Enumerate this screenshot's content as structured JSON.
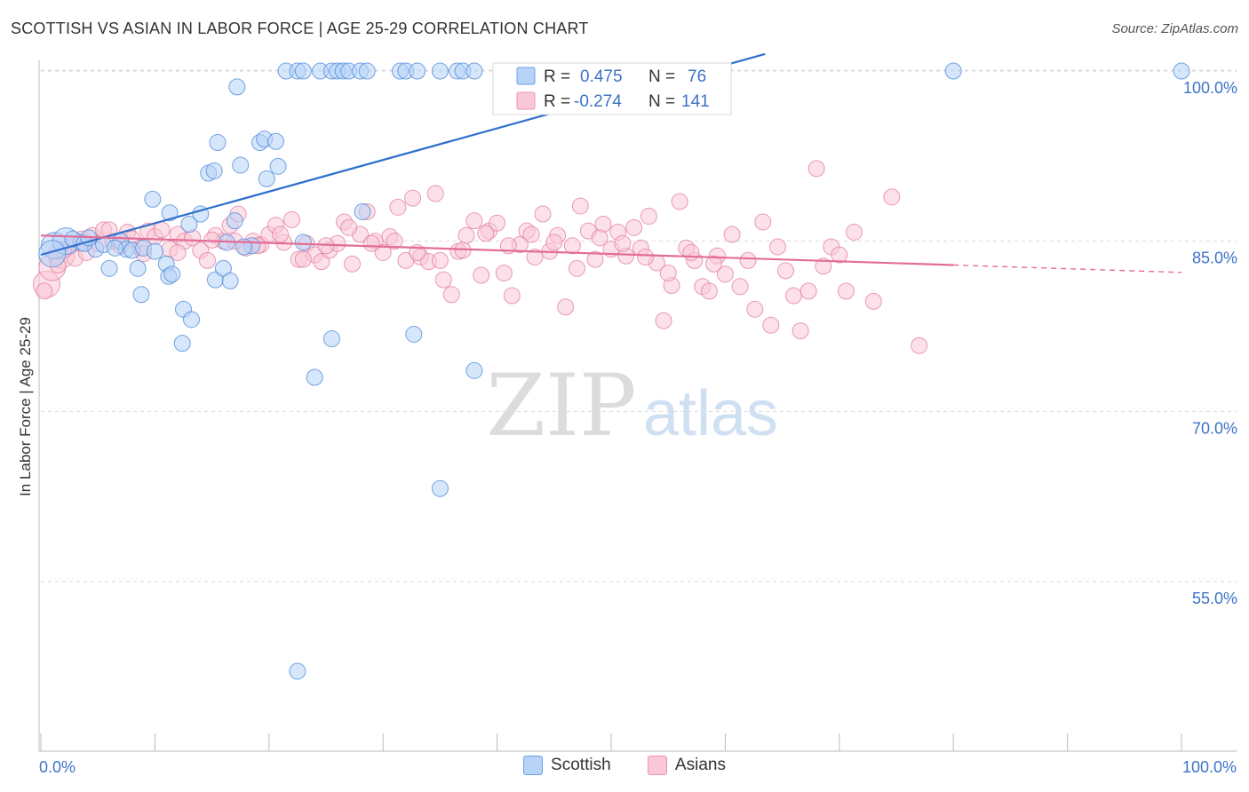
{
  "header": {
    "title": "SCOTTISH VS ASIAN IN LABOR FORCE | AGE 25-29 CORRELATION CHART",
    "source": "Source: ZipAtlas.com"
  },
  "watermark": {
    "zip": "ZIP",
    "atlas": "atlas"
  },
  "legend_box": {
    "rows": [
      {
        "r_label": "R =",
        "r_value": "0.475",
        "n_label": "N =",
        "n_value": "76",
        "color": "#4a86d8"
      },
      {
        "r_label": "R =",
        "r_value": "-0.274",
        "n_label": "N =",
        "n_value": "141",
        "color": "#e27ba0"
      }
    ]
  },
  "bottom_legend": [
    {
      "label": "Scottish",
      "color": "#b7d3f7"
    },
    {
      "label": "Asians",
      "color": "#f9c8d6"
    }
  ],
  "chart_data": {
    "type": "scatter",
    "title": "SCOTTISH VS ASIAN IN LABOR FORCE | AGE 25-29 CORRELATION CHART",
    "xlabel": "",
    "ylabel": "In Labor Force | Age 25-29",
    "xlim": [
      0,
      100
    ],
    "ylim": [
      42,
      102
    ],
    "x_tick_labels": [
      {
        "value": 0,
        "label": "0.0%"
      },
      {
        "value": 100,
        "label": "100.0%"
      }
    ],
    "y_tick_labels": [
      {
        "value": 55,
        "label": "55.0%"
      },
      {
        "value": 70,
        "label": "70.0%"
      },
      {
        "value": 85,
        "label": "85.0%"
      },
      {
        "value": 100,
        "label": "100.0%"
      }
    ],
    "grid": true,
    "legend_position": "bottom-center",
    "series": [
      {
        "name": "Scottish",
        "color": "#4a86d8",
        "fill": "#b7d3f7",
        "trend": {
          "x": [
            0,
            63.5
          ],
          "y": [
            83.8,
            101.5
          ]
        },
        "points": [
          [
            1.2,
            84.6
          ],
          [
            2.2,
            85.0
          ],
          [
            1.0,
            83.9
          ],
          [
            3.5,
            84.9
          ],
          [
            4.8,
            84.3
          ],
          [
            5.5,
            84.7
          ],
          [
            6.0,
            82.6
          ],
          [
            7.0,
            85.0
          ],
          [
            7.5,
            84.3
          ],
          [
            8.5,
            82.6
          ],
          [
            8.0,
            84.2
          ],
          [
            9.0,
            84.4
          ],
          [
            10.0,
            84.1
          ],
          [
            11.0,
            83.0
          ],
          [
            11.2,
            81.9
          ],
          [
            11.5,
            82.1
          ],
          [
            8.8,
            80.3
          ],
          [
            9.8,
            88.7
          ],
          [
            11.3,
            87.5
          ],
          [
            14.0,
            87.4
          ],
          [
            12.5,
            79.0
          ],
          [
            13.2,
            78.1
          ],
          [
            12.4,
            76.0
          ],
          [
            15.3,
            81.6
          ],
          [
            16.0,
            82.6
          ],
          [
            16.6,
            81.5
          ],
          [
            17.0,
            86.8
          ],
          [
            16.3,
            84.9
          ],
          [
            14.7,
            91.0
          ],
          [
            15.2,
            91.2
          ],
          [
            15.5,
            93.7
          ],
          [
            17.5,
            91.7
          ],
          [
            19.2,
            93.7
          ],
          [
            19.6,
            94.0
          ],
          [
            20.6,
            93.8
          ],
          [
            20.8,
            91.6
          ],
          [
            19.8,
            90.5
          ],
          [
            17.2,
            98.6
          ],
          [
            21.5,
            100.0
          ],
          [
            22.5,
            100.0
          ],
          [
            23.0,
            100.0
          ],
          [
            24.5,
            100.0
          ],
          [
            25.5,
            100.0
          ],
          [
            26.0,
            100.0
          ],
          [
            26.5,
            100.0
          ],
          [
            27.0,
            100.0
          ],
          [
            28.0,
            100.0
          ],
          [
            28.6,
            100.0
          ],
          [
            31.5,
            100.0
          ],
          [
            32.0,
            100.0
          ],
          [
            33.0,
            100.0
          ],
          [
            35.0,
            100.0
          ],
          [
            36.5,
            100.0
          ],
          [
            37.0,
            100.0
          ],
          [
            38.0,
            100.0
          ],
          [
            41.0,
            100.0
          ],
          [
            41.8,
            100.0
          ],
          [
            42.6,
            100.0
          ],
          [
            55.0,
            100.0
          ],
          [
            80.0,
            100.0
          ],
          [
            100.0,
            100.0
          ],
          [
            28.2,
            87.6
          ],
          [
            25.5,
            76.4
          ],
          [
            32.7,
            76.8
          ],
          [
            24.0,
            73.0
          ],
          [
            38.0,
            73.6
          ],
          [
            35.0,
            63.2
          ],
          [
            22.5,
            47.1
          ],
          [
            2.8,
            85.2
          ],
          [
            3.8,
            84.8
          ],
          [
            6.5,
            84.4
          ],
          [
            18.5,
            84.6
          ],
          [
            13.0,
            86.5
          ],
          [
            4.2,
            85.3
          ],
          [
            23.0,
            84.9
          ],
          [
            17.8,
            84.5
          ]
        ]
      },
      {
        "name": "Asians",
        "color": "#e27ba0",
        "fill": "#f9c8d6",
        "trend": {
          "x": [
            0,
            80
          ],
          "y": [
            85.5,
            82.9
          ]
        },
        "points": [
          [
            0.5,
            81.2
          ],
          [
            1.0,
            82.7
          ],
          [
            1.8,
            83.8
          ],
          [
            2.5,
            84.5
          ],
          [
            3.0,
            83.5
          ],
          [
            3.6,
            85.2
          ],
          [
            4.5,
            85.5
          ],
          [
            5.0,
            84.8
          ],
          [
            5.5,
            86.0
          ],
          [
            6.3,
            85.0
          ],
          [
            7.0,
            84.6
          ],
          [
            7.6,
            85.8
          ],
          [
            8.0,
            85.2
          ],
          [
            8.7,
            84.4
          ],
          [
            9.4,
            85.9
          ],
          [
            10.0,
            85.4
          ],
          [
            10.6,
            86.0
          ],
          [
            11.3,
            84.3
          ],
          [
            12.0,
            85.6
          ],
          [
            12.6,
            85.0
          ],
          [
            13.3,
            85.3
          ],
          [
            14.0,
            84.2
          ],
          [
            14.6,
            83.3
          ],
          [
            15.3,
            85.5
          ],
          [
            16.0,
            85.0
          ],
          [
            16.6,
            86.4
          ],
          [
            17.3,
            87.4
          ],
          [
            18.0,
            84.4
          ],
          [
            18.6,
            85.0
          ],
          [
            19.3,
            84.7
          ],
          [
            20.0,
            85.6
          ],
          [
            20.6,
            86.4
          ],
          [
            21.3,
            84.9
          ],
          [
            22.0,
            86.9
          ],
          [
            22.6,
            83.4
          ],
          [
            23.3,
            84.8
          ],
          [
            24.0,
            83.8
          ],
          [
            24.6,
            83.2
          ],
          [
            25.3,
            84.2
          ],
          [
            26.0,
            84.8
          ],
          [
            26.6,
            86.7
          ],
          [
            27.3,
            83.0
          ],
          [
            28.0,
            85.6
          ],
          [
            28.6,
            87.6
          ],
          [
            29.3,
            85.0
          ],
          [
            30.0,
            84.0
          ],
          [
            30.6,
            85.4
          ],
          [
            31.3,
            88.0
          ],
          [
            32.0,
            83.3
          ],
          [
            32.6,
            88.8
          ],
          [
            33.3,
            83.6
          ],
          [
            34.0,
            83.2
          ],
          [
            34.6,
            89.2
          ],
          [
            35.3,
            81.6
          ],
          [
            36.0,
            80.3
          ],
          [
            36.6,
            84.1
          ],
          [
            37.3,
            85.5
          ],
          [
            38.0,
            86.8
          ],
          [
            38.6,
            82.0
          ],
          [
            39.3,
            85.9
          ],
          [
            40.0,
            86.6
          ],
          [
            40.6,
            82.2
          ],
          [
            41.3,
            80.2
          ],
          [
            42.0,
            84.7
          ],
          [
            42.6,
            85.9
          ],
          [
            43.3,
            83.6
          ],
          [
            44.0,
            87.4
          ],
          [
            44.6,
            84.1
          ],
          [
            45.3,
            85.5
          ],
          [
            46.0,
            79.2
          ],
          [
            46.6,
            84.6
          ],
          [
            47.3,
            88.1
          ],
          [
            48.0,
            85.9
          ],
          [
            48.6,
            83.4
          ],
          [
            49.3,
            86.5
          ],
          [
            50.0,
            84.3
          ],
          [
            50.6,
            85.8
          ],
          [
            51.3,
            83.7
          ],
          [
            52.0,
            86.2
          ],
          [
            52.6,
            84.4
          ],
          [
            53.3,
            87.2
          ],
          [
            54.0,
            83.1
          ],
          [
            54.6,
            78.0
          ],
          [
            55.3,
            81.1
          ],
          [
            56.0,
            88.5
          ],
          [
            56.6,
            84.4
          ],
          [
            57.3,
            83.3
          ],
          [
            58.0,
            81.0
          ],
          [
            58.6,
            80.6
          ],
          [
            59.3,
            83.7
          ],
          [
            60.0,
            82.1
          ],
          [
            60.6,
            85.6
          ],
          [
            61.3,
            81.0
          ],
          [
            62.0,
            83.3
          ],
          [
            62.6,
            79.0
          ],
          [
            63.3,
            86.7
          ],
          [
            64.0,
            77.6
          ],
          [
            64.6,
            84.5
          ],
          [
            65.3,
            82.4
          ],
          [
            66.0,
            80.2
          ],
          [
            66.6,
            77.1
          ],
          [
            67.3,
            80.6
          ],
          [
            68.0,
            91.4
          ],
          [
            68.6,
            82.8
          ],
          [
            69.3,
            84.5
          ],
          [
            70.0,
            83.8
          ],
          [
            70.6,
            80.6
          ],
          [
            71.3,
            85.8
          ],
          [
            73.0,
            79.7
          ],
          [
            74.6,
            88.9
          ],
          [
            77.0,
            75.8
          ],
          [
            2.0,
            84.2
          ],
          [
            4.0,
            84.0
          ],
          [
            6.0,
            86.0
          ],
          [
            9.0,
            83.9
          ],
          [
            12.0,
            84.0
          ],
          [
            15.0,
            85.1
          ],
          [
            17.0,
            85.0
          ],
          [
            19.0,
            84.6
          ],
          [
            21.0,
            85.6
          ],
          [
            23.0,
            83.4
          ],
          [
            25.0,
            84.6
          ],
          [
            27.0,
            86.2
          ],
          [
            29.0,
            84.8
          ],
          [
            31.0,
            85.0
          ],
          [
            33.0,
            84.0
          ],
          [
            35.0,
            83.3
          ],
          [
            37.0,
            84.2
          ],
          [
            39.0,
            85.7
          ],
          [
            41.0,
            84.6
          ],
          [
            43.0,
            85.6
          ],
          [
            45.0,
            84.9
          ],
          [
            47.0,
            82.6
          ],
          [
            49.0,
            85.3
          ],
          [
            51.0,
            84.8
          ],
          [
            53.0,
            83.6
          ],
          [
            55.0,
            82.2
          ],
          [
            57.0,
            84.0
          ],
          [
            59.0,
            83.0
          ],
          [
            0.3,
            80.6
          ],
          [
            1.5,
            82.9
          ]
        ]
      }
    ]
  }
}
